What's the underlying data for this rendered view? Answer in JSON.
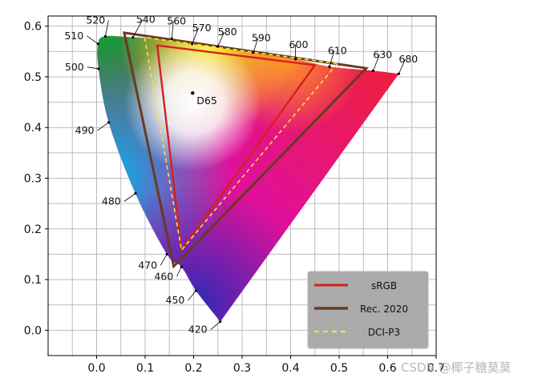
{
  "chart_data": {
    "type": "scatter",
    "title": "",
    "xlabel": "",
    "ylabel": "",
    "xlim": [
      -0.1,
      0.7
    ],
    "ylim": [
      -0.05,
      0.62
    ],
    "grid": true,
    "x_tick_labels": [
      "0.0",
      "0.1",
      "0.2",
      "0.3",
      "0.4",
      "0.5",
      "0.6",
      "0.7"
    ],
    "y_tick_labels": [
      "0.0",
      "0.1",
      "0.2",
      "0.3",
      "0.4",
      "0.5",
      "0.6"
    ],
    "spectral_locus": [
      {
        "label": "420",
        "x": 0.255,
        "y": 0.017
      },
      {
        "label": "450",
        "x": 0.205,
        "y": 0.078
      },
      {
        "label": "460",
        "x": 0.175,
        "y": 0.125
      },
      {
        "label": "470",
        "x": 0.145,
        "y": 0.15
      },
      {
        "label": "480",
        "x": 0.08,
        "y": 0.27
      },
      {
        "label": "490",
        "x": 0.025,
        "y": 0.41
      },
      {
        "label": "500",
        "x": 0.004,
        "y": 0.516
      },
      {
        "label": "510",
        "x": 0.003,
        "y": 0.565
      },
      {
        "label": "520",
        "x": 0.018,
        "y": 0.58
      },
      {
        "label": "540",
        "x": 0.075,
        "y": 0.578
      },
      {
        "label": "560",
        "x": 0.155,
        "y": 0.575
      },
      {
        "label": "570",
        "x": 0.197,
        "y": 0.565
      },
      {
        "label": "580",
        "x": 0.25,
        "y": 0.56
      },
      {
        "label": "590",
        "x": 0.323,
        "y": 0.548
      },
      {
        "label": "600",
        "x": 0.41,
        "y": 0.535
      },
      {
        "label": "610",
        "x": 0.48,
        "y": 0.52
      },
      {
        "label": "630",
        "x": 0.57,
        "y": 0.512
      },
      {
        "label": "680",
        "x": 0.623,
        "y": 0.506
      }
    ],
    "white_point": {
      "label": "D65",
      "x": 0.198,
      "y": 0.468
    },
    "series": [
      {
        "name": "sRGB",
        "color": "#d42020",
        "points": [
          [
            0.45,
            0.523
          ],
          [
            0.125,
            0.562
          ],
          [
            0.175,
            0.158
          ]
        ]
      },
      {
        "name": "Rec. 2020",
        "color": "#6b3a1f",
        "points": [
          [
            0.556,
            0.517
          ],
          [
            0.057,
            0.587
          ],
          [
            0.159,
            0.126
          ]
        ]
      },
      {
        "name": "DCI-P3",
        "color": "#f5e63a",
        "points": [
          [
            0.496,
            0.526
          ],
          [
            0.099,
            0.578
          ],
          [
            0.175,
            0.158
          ]
        ]
      }
    ],
    "legend": {
      "placement": "lower-right"
    }
  },
  "watermark": "CSDN @椰子糖莫莫"
}
